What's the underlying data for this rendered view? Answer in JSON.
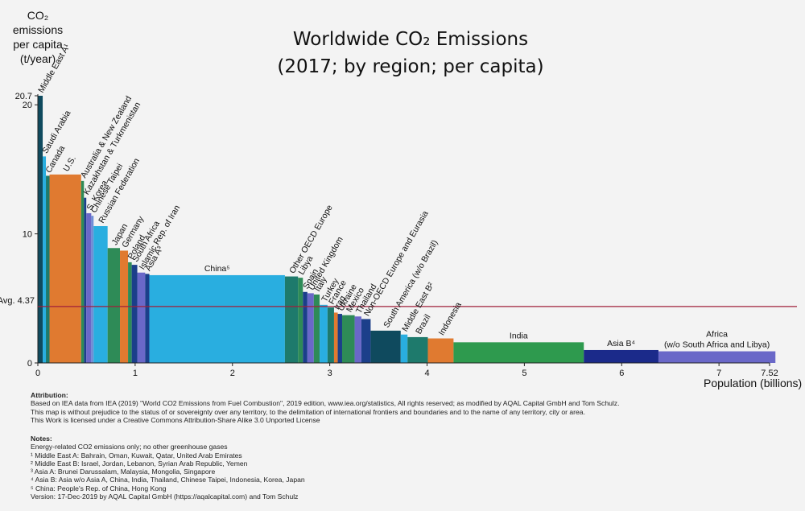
{
  "chart_data": {
    "type": "bar",
    "variant": "variable-width",
    "title_line1": "Worldwide CO₂ Emissions",
    "title_line2": "(2017; by region; per capita)",
    "ylabel": [
      "CO₂ emissions",
      "per capita",
      "(t/year)"
    ],
    "xlabel": "Population (billions)",
    "ylim": [
      0,
      20.7
    ],
    "xlim": [
      0,
      7.52
    ],
    "yticks": [
      "0",
      "10",
      "20",
      "20.7"
    ],
    "ytick_values": [
      0,
      10,
      20,
      20.7
    ],
    "xticks": [
      "0",
      "1",
      "2",
      "3",
      "4",
      "5",
      "6",
      "7",
      "7.52"
    ],
    "xtick_values": [
      0,
      1,
      2,
      3,
      4,
      5,
      6,
      7,
      7.52
    ],
    "average": {
      "label": "Avg. 4.37",
      "value": 4.37,
      "color": "#a01f3a"
    },
    "bars": [
      {
        "label": "Middle East A¹",
        "value": 20.7,
        "width": 0.05,
        "color": "#0f4a5e"
      },
      {
        "label": "Saudi Arabia",
        "value": 16.0,
        "width": 0.033,
        "color": "#29aee0"
      },
      {
        "label": "Canada",
        "value": 14.5,
        "width": 0.037,
        "color": "#1e7a6c"
      },
      {
        "label": "U.S.",
        "value": 14.6,
        "width": 0.325,
        "color": "#e07a30"
      },
      {
        "label": "Australia & New Zealand",
        "value": 14.1,
        "width": 0.029,
        "color": "#2e8b57"
      },
      {
        "label": "Kazakhstan & Turkmenistan",
        "value": 12.8,
        "width": 0.024,
        "color": "#1b3f8a"
      },
      {
        "label": "S. Korea",
        "value": 11.6,
        "width": 0.051,
        "color": "#6a68c8"
      },
      {
        "label": "Chinese Taipei",
        "value": 11.4,
        "width": 0.024,
        "color": "#6f8fd6"
      },
      {
        "label": "Russian Federation",
        "value": 10.6,
        "width": 0.144,
        "color": "#29aee0"
      },
      {
        "label": "Japan",
        "value": 8.9,
        "width": 0.127,
        "color": "#2e8b57"
      },
      {
        "label": "Germany",
        "value": 8.7,
        "width": 0.083,
        "color": "#e07a30"
      },
      {
        "label": "Poland",
        "value": 7.8,
        "width": 0.038,
        "color": "#2e8b57"
      },
      {
        "label": "South Africa",
        "value": 7.6,
        "width": 0.057,
        "color": "#1b3f8a"
      },
      {
        "label": "Islamic Rep. of Iran",
        "value": 7.0,
        "width": 0.081,
        "color": "#6a68c8"
      },
      {
        "label": "Asia A³",
        "value": 6.9,
        "width": 0.043,
        "color": "#1b3f8a"
      },
      {
        "label": "China⁵",
        "value": 6.8,
        "width": 1.393,
        "color": "#29aee0"
      },
      {
        "label": "Other OECD Europe",
        "value": 6.7,
        "width": 0.135,
        "color": "#1e7a6c"
      },
      {
        "label": "Libya",
        "value": 6.6,
        "width": 0.05,
        "color": "#2e8b57"
      },
      {
        "label": "Spain",
        "value": 5.5,
        "width": 0.046,
        "color": "#1b3f8a"
      },
      {
        "label": "United Kingdom",
        "value": 5.4,
        "width": 0.066,
        "color": "#6a68c8"
      },
      {
        "label": "Italy",
        "value": 5.3,
        "width": 0.06,
        "color": "#2e8b57"
      },
      {
        "label": "Turkey",
        "value": 4.5,
        "width": 0.081,
        "color": "#29aee0"
      },
      {
        "label": "France",
        "value": 4.3,
        "width": 0.067,
        "color": "#1e7a6c"
      },
      {
        "label": "Iraq",
        "value": 3.9,
        "width": 0.038,
        "color": "#e07a30"
      },
      {
        "label": "Ukraine",
        "value": 3.8,
        "width": 0.045,
        "color": "#1b3f8a"
      },
      {
        "label": "Mexico",
        "value": 3.7,
        "width": 0.129,
        "color": "#2e8b57"
      },
      {
        "label": "Thailand",
        "value": 3.6,
        "width": 0.069,
        "color": "#6a68c8"
      },
      {
        "label": "Non-OECD Europe and Eurasia",
        "value": 3.4,
        "width": 0.095,
        "color": "#1b3f8a"
      },
      {
        "label": "South America (w/o Brazil)",
        "value": 2.5,
        "width": 0.309,
        "color": "#0f4a5e"
      },
      {
        "label": "Middle East B²",
        "value": 2.2,
        "width": 0.07,
        "color": "#29aee0"
      },
      {
        "label": "Brazil",
        "value": 2.0,
        "width": 0.209,
        "color": "#1e7a6c"
      },
      {
        "label": "Indonesia",
        "value": 1.9,
        "width": 0.264,
        "color": "#e07a30"
      },
      {
        "label": "India",
        "value": 1.6,
        "width": 1.339,
        "color": "#2e9a4e"
      },
      {
        "label": "Asia B⁴",
        "value": 1.0,
        "width": 0.767,
        "color": "#1b2a8a"
      },
      {
        "label": "Africa (w/o South Africa and Libya)",
        "value": 0.9,
        "width": 1.202,
        "color": "#6a68c8"
      }
    ]
  },
  "attribution": {
    "heading": "Attribution:",
    "lines": [
      "Based on IEA data from IEA (2019) \"World CO2 Emissions from Fuel Combustion\", 2019 edition, www.iea.org/statistics, All rights reserved; as modified by AQAL Capital GmbH and Tom Schulz.",
      "This map is without prejudice to the status of or sovereignty over any territory, to the delimitation of international frontiers and boundaries and to the name of any territory, city or area.",
      "This Work is licensed under a Creative Commons Attribution-Share Alike 3.0 Unported License"
    ]
  },
  "notes": {
    "heading": "Notes:",
    "lines": [
      "Energy-related CO2 emissions only; no other greenhouse gases",
      "¹ Middle East A: Bahrain, Oman, Kuwait, Qatar, United Arab Emirates",
      "² Middle East B: Israel, Jordan, Lebanon, Syrian Arab Republic, Yemen",
      "³ Asia A: Brunei Darussalam, Malaysia, Mongolia, Singapore",
      "⁴ Asia B: Asia w/o Asia A, China, India, Thailand, Chinese Taipei, Indonesia, Korea, Japan",
      "⁵ China: People's Rep. of China, Hong Kong",
      "Version: 17-Dec-2019 by AQAL Capital GmbH (https://aqalcapital.com) and Tom Schulz"
    ]
  }
}
